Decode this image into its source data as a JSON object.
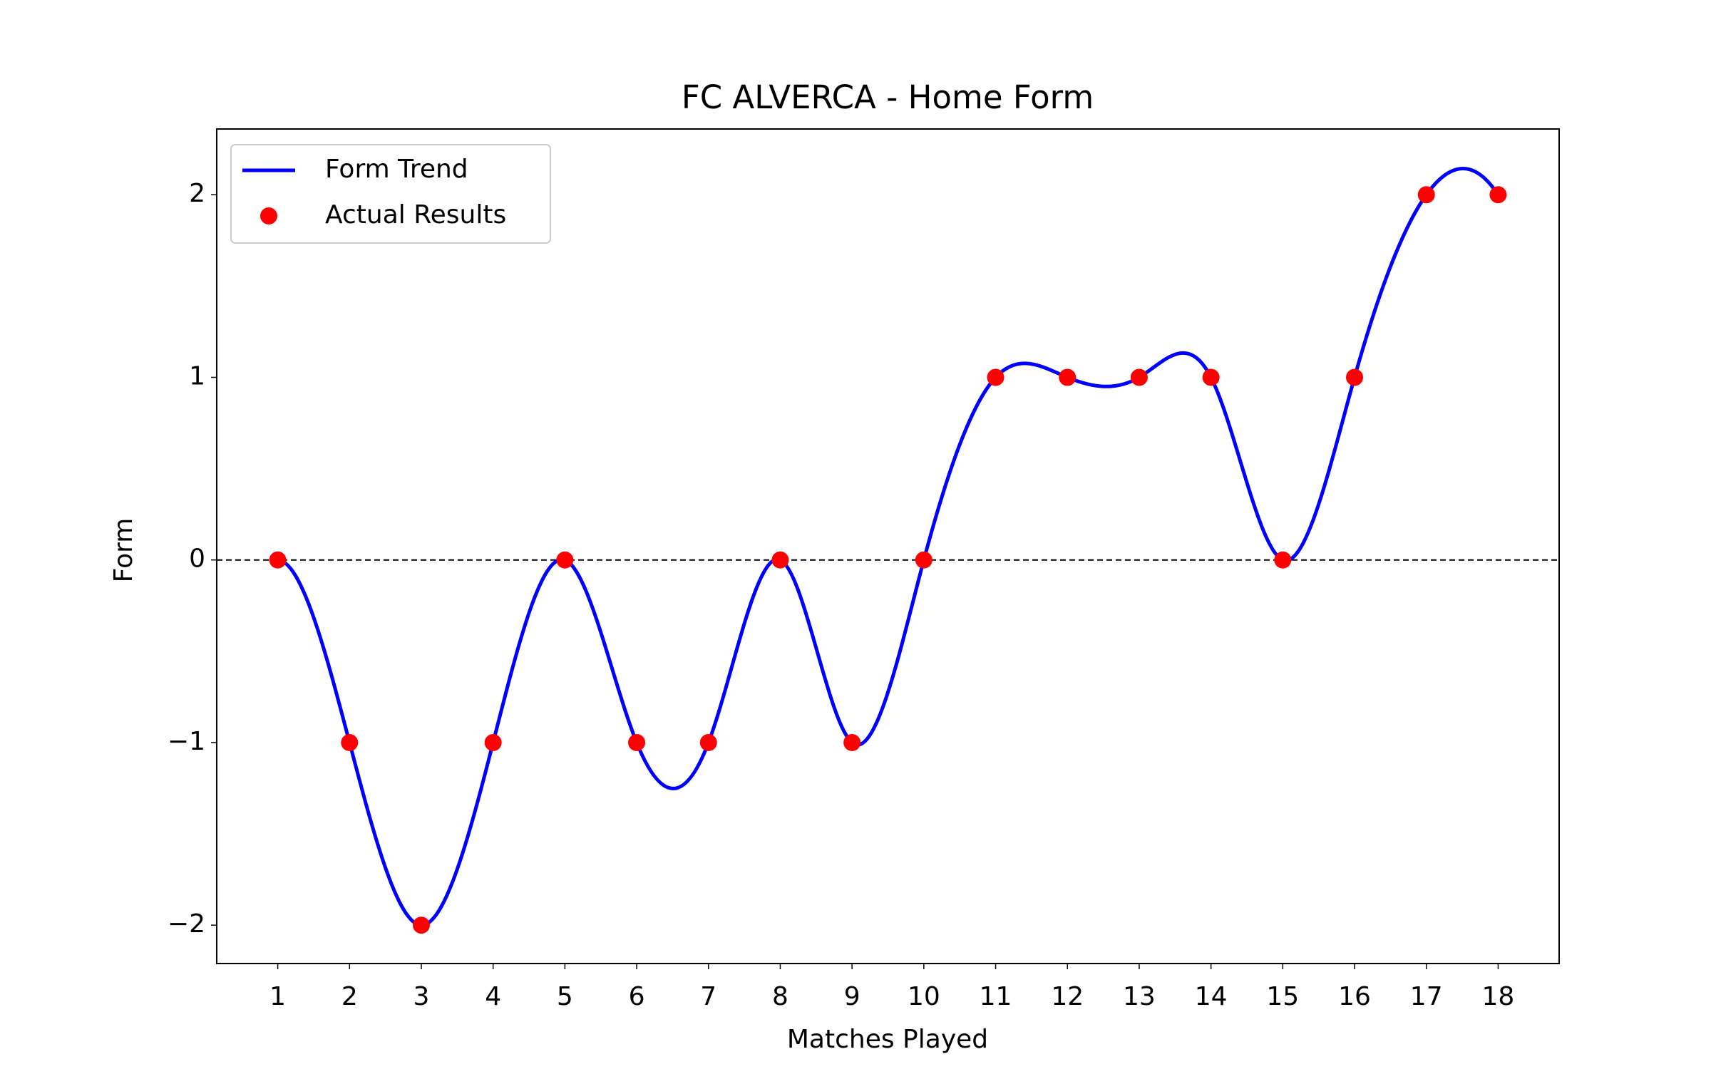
{
  "chart_data": {
    "type": "line",
    "title": "FC ALVERCA - Home Form",
    "x_label": "Matches Played",
    "y_label": "Form",
    "x": [
      1,
      2,
      3,
      4,
      5,
      6,
      7,
      8,
      9,
      10,
      11,
      12,
      13,
      14,
      15,
      16,
      17,
      18
    ],
    "series": [
      {
        "name": "Form Trend",
        "color": "#0000ff",
        "style": "spline",
        "values": [
          0,
          -1,
          -2,
          -1,
          0,
          -1,
          -1,
          0,
          -1,
          0,
          1,
          1,
          1,
          1,
          0,
          1,
          2,
          2
        ]
      },
      {
        "name": "Actual Results",
        "color": "#ff0000",
        "style": "scatter",
        "values": [
          0,
          -1,
          -2,
          -1,
          0,
          -1,
          -1,
          0,
          -1,
          0,
          1,
          1,
          1,
          1,
          0,
          1,
          2,
          2
        ]
      }
    ],
    "reference_line": 0,
    "xlim": [
      0.15,
      18.85
    ],
    "ylim": [
      -2.21,
      2.36
    ],
    "xticks": [
      1,
      2,
      3,
      4,
      5,
      6,
      7,
      8,
      9,
      10,
      11,
      12,
      13,
      14,
      15,
      16,
      17,
      18
    ],
    "yticks": [
      {
        "value": -2,
        "label": "−2"
      },
      {
        "value": -1,
        "label": "−1"
      },
      0,
      1,
      2
    ],
    "legend": "upper-left",
    "grid": false
  }
}
